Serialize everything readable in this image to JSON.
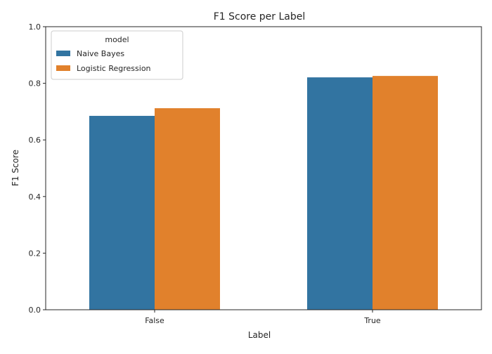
{
  "chart_data": {
    "type": "bar",
    "title": "F1 Score per Label",
    "xlabel": "Label",
    "ylabel": "F1 Score",
    "categories": [
      "False",
      "True"
    ],
    "series": [
      {
        "name": "Naive Bayes",
        "values": [
          0.685,
          0.821
        ],
        "color": "#3274a1"
      },
      {
        "name": "Logistic Regression",
        "values": [
          0.712,
          0.826
        ],
        "color": "#e1812c"
      }
    ],
    "ylim": [
      0,
      1
    ],
    "yticks": [
      0.0,
      0.2,
      0.4,
      0.6,
      0.8,
      1.0
    ],
    "ytick_labels": [
      "0.0",
      "0.2",
      "0.4",
      "0.6",
      "0.8",
      "1.0"
    ],
    "grid": false,
    "legend": {
      "title": "model",
      "position": "top-left"
    }
  }
}
